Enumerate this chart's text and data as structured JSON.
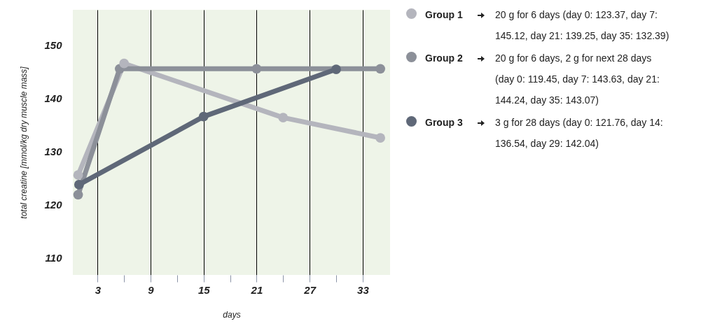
{
  "chart_data": {
    "type": "line",
    "xlabel": "days",
    "ylabel": "total creatine [mmol/kg dry muscle mass]",
    "xlim": [
      0.2,
      36.1
    ],
    "ylim": [
      106.8,
      156.7
    ],
    "xticks": [
      3,
      {
        "value": 6,
        "label": null
      },
      9,
      {
        "value": 12,
        "label": null
      },
      15,
      {
        "value": 18,
        "label": null
      },
      21,
      {
        "value": 24,
        "label": null
      },
      27,
      {
        "value": 30,
        "label": null
      },
      33
    ],
    "yticks": [
      110,
      120,
      130,
      140,
      150
    ],
    "grid": "x",
    "marker": "circle",
    "line_style": "solid",
    "legend": "right",
    "series": [
      {
        "name": "Group 1",
        "color": "#b4b5bd",
        "x": [
          0.8,
          6,
          24,
          35
        ],
        "values": [
          125.6,
          146.6,
          136.4,
          132.6
        ]
      },
      {
        "name": "Group 2",
        "color": "#8c9099",
        "x": [
          0.8,
          5.5,
          21,
          35
        ],
        "values": [
          121.9,
          145.6,
          145.6,
          145.6
        ]
      },
      {
        "name": "Group 3",
        "color": "#5f6878",
        "x": [
          0.9,
          15,
          30
        ],
        "values": [
          123.8,
          136.6,
          145.5
        ]
      }
    ],
    "annotations": [
      "20 g for 6 days (day 0: 123.37, day 7: 145.12, day 21: 139.25, day 35: 132.39)",
      "20 g for 6 days, 2 g for next 28 days (day 0: 119.45, day 7: 143.63, day 21: 144.24, day 35: 143.07)",
      "3 g for 28 days (day 0: 121.76, day 14: 136.54, day 29: 142.04)"
    ]
  }
}
